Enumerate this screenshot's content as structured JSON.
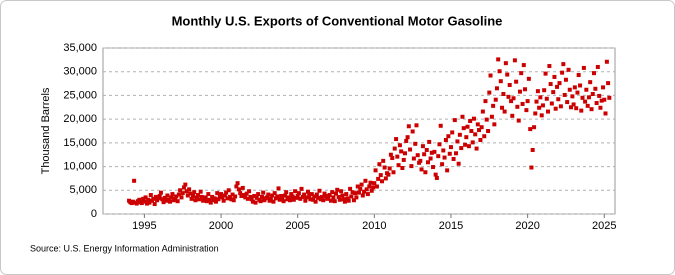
{
  "chart_data": {
    "type": "scatter",
    "title": "Monthly U.S. Exports of Conventional Motor Gasoline",
    "y_label": "Thousand Barrels",
    "source": "Source: U.S. Energy Information Administration",
    "color": "#cc0000",
    "grid": true,
    "xlim": [
      1992.3,
      2025.7
    ],
    "xticks": [
      1995,
      2000,
      2005,
      2010,
      2015,
      2020,
      2025
    ],
    "ylim": [
      0,
      35000
    ],
    "yticks": [
      0,
      {
        "value": 5000,
        "label": "5,000"
      },
      {
        "value": 10000,
        "label": "10,000"
      },
      {
        "value": 15000,
        "label": "15,000"
      },
      {
        "value": 20000,
        "label": "20,000"
      },
      {
        "value": 25000,
        "label": "25,000"
      },
      {
        "value": 30000,
        "label": "30,000"
      },
      {
        "value": 35000,
        "label": "35,000"
      }
    ],
    "x": [
      1994,
      1994.08,
      1994.17,
      1994.25,
      1994.33,
      1994.42,
      1994.5,
      1994.58,
      1994.67,
      1994.75,
      1994.83,
      1994.92,
      1995,
      1995.08,
      1995.17,
      1995.25,
      1995.33,
      1995.42,
      1995.5,
      1995.58,
      1995.67,
      1995.75,
      1995.83,
      1995.92,
      1996,
      1996.08,
      1996.17,
      1996.25,
      1996.33,
      1996.42,
      1996.5,
      1996.58,
      1996.67,
      1996.75,
      1996.83,
      1996.92,
      1997,
      1997.08,
      1997.17,
      1997.25,
      1997.33,
      1997.42,
      1997.5,
      1997.58,
      1997.67,
      1997.75,
      1997.83,
      1997.92,
      1998,
      1998.08,
      1998.17,
      1998.25,
      1998.33,
      1998.42,
      1998.5,
      1998.58,
      1998.67,
      1998.75,
      1998.83,
      1998.92,
      1999,
      1999.08,
      1999.17,
      1999.25,
      1999.33,
      1999.42,
      1999.5,
      1999.58,
      1999.67,
      1999.75,
      1999.83,
      1999.92,
      2000,
      2000.08,
      2000.17,
      2000.25,
      2000.33,
      2000.42,
      2000.5,
      2000.58,
      2000.67,
      2000.75,
      2000.83,
      2000.92,
      2001,
      2001.08,
      2001.17,
      2001.25,
      2001.33,
      2001.42,
      2001.5,
      2001.58,
      2001.67,
      2001.75,
      2001.83,
      2001.92,
      2002,
      2002.08,
      2002.17,
      2002.25,
      2002.33,
      2002.42,
      2002.5,
      2002.58,
      2002.67,
      2002.75,
      2002.83,
      2002.92,
      2003,
      2003.08,
      2003.17,
      2003.25,
      2003.33,
      2003.42,
      2003.5,
      2003.58,
      2003.67,
      2003.75,
      2003.83,
      2003.92,
      2004,
      2004.08,
      2004.17,
      2004.25,
      2004.33,
      2004.42,
      2004.5,
      2004.58,
      2004.67,
      2004.75,
      2004.83,
      2004.92,
      2005,
      2005.08,
      2005.17,
      2005.25,
      2005.33,
      2005.42,
      2005.5,
      2005.58,
      2005.67,
      2005.75,
      2005.83,
      2005.92,
      2006,
      2006.08,
      2006.17,
      2006.25,
      2006.33,
      2006.42,
      2006.5,
      2006.58,
      2006.67,
      2006.75,
      2006.83,
      2006.92,
      2007,
      2007.08,
      2007.17,
      2007.25,
      2007.33,
      2007.42,
      2007.5,
      2007.58,
      2007.67,
      2007.75,
      2007.83,
      2007.92,
      2008,
      2008.08,
      2008.17,
      2008.25,
      2008.33,
      2008.42,
      2008.5,
      2008.58,
      2008.67,
      2008.75,
      2008.83,
      2008.92,
      2009,
      2009.08,
      2009.17,
      2009.25,
      2009.33,
      2009.42,
      2009.5,
      2009.58,
      2009.67,
      2009.75,
      2009.83,
      2009.92,
      2010,
      2010.08,
      2010.17,
      2010.25,
      2010.33,
      2010.42,
      2010.5,
      2010.58,
      2010.67,
      2010.75,
      2010.83,
      2010.92,
      2011,
      2011.08,
      2011.17,
      2011.25,
      2011.33,
      2011.42,
      2011.5,
      2011.58,
      2011.67,
      2011.75,
      2011.83,
      2011.92,
      2012,
      2012.08,
      2012.17,
      2012.25,
      2012.33,
      2012.42,
      2012.5,
      2012.58,
      2012.67,
      2012.75,
      2012.83,
      2012.92,
      2013,
      2013.08,
      2013.17,
      2013.25,
      2013.33,
      2013.42,
      2013.5,
      2013.58,
      2013.67,
      2013.75,
      2013.83,
      2013.92,
      2014,
      2014.08,
      2014.17,
      2014.25,
      2014.33,
      2014.42,
      2014.5,
      2014.58,
      2014.67,
      2014.75,
      2014.83,
      2014.92,
      2015,
      2015.08,
      2015.17,
      2015.25,
      2015.33,
      2015.42,
      2015.5,
      2015.58,
      2015.67,
      2015.75,
      2015.83,
      2015.92,
      2016,
      2016.08,
      2016.17,
      2016.25,
      2016.33,
      2016.42,
      2016.5,
      2016.58,
      2016.67,
      2016.75,
      2016.83,
      2016.92,
      2017,
      2017.08,
      2017.17,
      2017.25,
      2017.33,
      2017.42,
      2017.5,
      2017.58,
      2017.67,
      2017.75,
      2017.83,
      2017.92,
      2018,
      2018.08,
      2018.17,
      2018.25,
      2018.33,
      2018.42,
      2018.5,
      2018.58,
      2018.67,
      2018.75,
      2018.83,
      2018.92,
      2019,
      2019.08,
      2019.17,
      2019.25,
      2019.33,
      2019.42,
      2019.5,
      2019.58,
      2019.67,
      2019.75,
      2019.83,
      2019.92,
      2020,
      2020.08,
      2020.17,
      2020.25,
      2020.33,
      2020.42,
      2020.5,
      2020.58,
      2020.67,
      2020.75,
      2020.83,
      2020.92,
      2021,
      2021.08,
      2021.17,
      2021.25,
      2021.33,
      2021.42,
      2021.5,
      2021.58,
      2021.67,
      2021.75,
      2021.83,
      2021.92,
      2022,
      2022.08,
      2022.17,
      2022.25,
      2022.33,
      2022.42,
      2022.5,
      2022.58,
      2022.67,
      2022.75,
      2022.83,
      2022.92,
      2023,
      2023.08,
      2023.17,
      2023.25,
      2023.33,
      2023.42,
      2023.5,
      2023.58,
      2023.67,
      2023.75,
      2023.83,
      2023.92,
      2024,
      2024.08,
      2024.17,
      2024.25,
      2024.33,
      2024.42,
      2024.5,
      2024.58,
      2024.67,
      2024.75,
      2024.83,
      2024.92,
      2025,
      2025.08,
      2025.17,
      2025.25,
      2025.33
    ],
    "values": [
      2800,
      2500,
      2300,
      2600,
      7000,
      2400,
      2200,
      2700,
      3000,
      2500,
      2300,
      3200,
      2600,
      3500,
      2200,
      3000,
      2400,
      4000,
      2800,
      3200,
      2100,
      3600,
      2900,
      3300,
      3800,
      4500,
      3100,
      2500,
      3400,
      2800,
      3900,
      3000,
      2600,
      3500,
      4200,
      2900,
      3300,
      3700,
      2700,
      4100,
      5000,
      3500,
      4400,
      5600,
      6200,
      4800,
      3900,
      5200,
      4300,
      3200,
      3800,
      4600,
      2900,
      3500,
      4000,
      3100,
      4700,
      3600,
      2800,
      3300,
      3500,
      2700,
      4200,
      3000,
      2400,
      3600,
      2900,
      3300,
      2600,
      4400,
      3100,
      3800,
      4200,
      3500,
      2800,
      3900,
      4500,
      3300,
      5000,
      3600,
      3100,
      4100,
      2900,
      3700,
      5800,
      6500,
      5200,
      4400,
      3800,
      5500,
      4000,
      3500,
      4300,
      3200,
      4800,
      3600,
      3100,
      2600,
      3800,
      2400,
      3400,
      4200,
      3000,
      2700,
      3600,
      4500,
      2900,
      3300,
      3500,
      4100,
      2800,
      3200,
      3900,
      2600,
      4400,
      3300,
      3700,
      5400,
      3000,
      3800,
      3300,
      2700,
      3900,
      4600,
      3100,
      3500,
      2900,
      4200,
      3700,
      3000,
      4800,
      3400,
      3800,
      4400,
      3200,
      5300,
      3600,
      4100,
      2800,
      3500,
      4700,
      3900,
      3100,
      4200,
      3000,
      3700,
      2600,
      4100,
      3400,
      4900,
      3100,
      3600,
      2900,
      4300,
      3800,
      3200,
      3300,
      4000,
      2800,
      4600,
      3500,
      2700,
      4300,
      5100,
      3600,
      3000,
      4800,
      3900,
      3100,
      2600,
      4200,
      3300,
      2800,
      5300,
      3700,
      4600,
      2900,
      4400,
      3500,
      5800,
      4500,
      5300,
      6200,
      3900,
      4700,
      7000,
      5200,
      4200,
      5800,
      6600,
      4900,
      5600,
      6500,
      9200,
      5800,
      7400,
      10500,
      8200,
      6900,
      11200,
      9800,
      7500,
      8600,
      8300,
      9600,
      12500,
      11800,
      8800,
      13800,
      15800,
      12100,
      10300,
      14500,
      13200,
      9700,
      11400,
      12800,
      15400,
      16200,
      18500,
      13600,
      10100,
      17400,
      11700,
      14800,
      18700,
      12400,
      10800,
      11200,
      9400,
      14300,
      12600,
      8800,
      13500,
      10900,
      15200,
      11700,
      12900,
      9900,
      13100,
      8300,
      7600,
      12200,
      14700,
      18600,
      10500,
      13400,
      11900,
      15600,
      9200,
      16400,
      12700,
      14100,
      17200,
      11600,
      19800,
      12800,
      15300,
      10600,
      16700,
      13900,
      20500,
      18100,
      14600,
      16200,
      18400,
      14300,
      19600,
      17500,
      15100,
      20100,
      16800,
      13800,
      18900,
      17700,
      15600,
      18300,
      21600,
      16400,
      23800,
      19900,
      17500,
      25600,
      29200,
      20500,
      22800,
      18900,
      24100,
      26500,
      32600,
      30100,
      28000,
      22400,
      25300,
      21600,
      31800,
      29400,
      24700,
      27200,
      23800,
      20700,
      24400,
      32400,
      27900,
      22600,
      19700,
      25800,
      29700,
      23200,
      31400,
      26300,
      21900,
      23800,
      28500,
      17900,
      9800,
      13500,
      18300,
      21200,
      23700,
      25900,
      22400,
      24600,
      20800,
      22900,
      26100,
      29600,
      24300,
      21600,
      31200,
      27400,
      23300,
      25700,
      28900,
      22200,
      26800,
      24200,
      27600,
      22700,
      29800,
      31600,
      25100,
      28300,
      23600,
      30400,
      26200,
      22500,
      24800,
      23100,
      26700,
      22300,
      25600,
      29300,
      27100,
      21800,
      24500,
      30800,
      23700,
      26200,
      22800,
      24600,
      27800,
      22100,
      25300,
      29700,
      26400,
      23400,
      31000,
      24900,
      22400,
      23900,
      26700,
      24100,
      21200,
      32100,
      27600,
      24500
    ]
  }
}
